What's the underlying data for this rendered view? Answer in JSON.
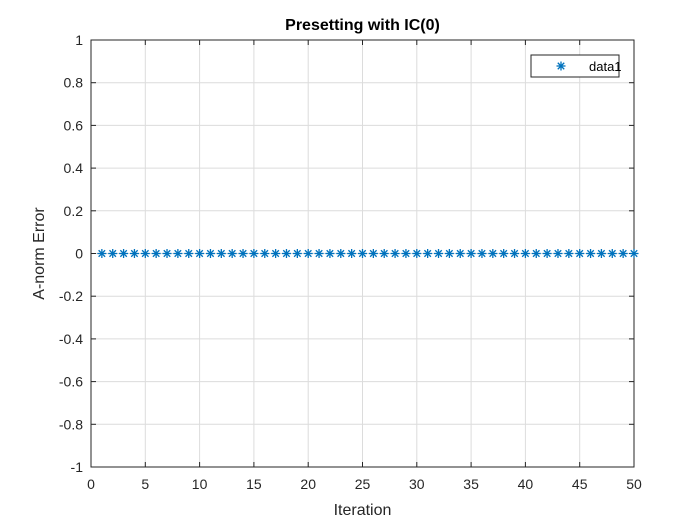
{
  "chart_data": {
    "type": "scatter",
    "title": "Presetting with IC(0)",
    "xlabel": "Iteration",
    "ylabel": "A-norm Error",
    "xlim": [
      0,
      50
    ],
    "ylim": [
      -1,
      1
    ],
    "xticks": [
      0,
      5,
      10,
      15,
      20,
      25,
      30,
      35,
      40,
      45,
      50
    ],
    "yticks": [
      -1,
      -0.8,
      -0.6,
      -0.4,
      -0.2,
      0,
      0.2,
      0.4,
      0.6,
      0.8,
      1
    ],
    "xtick_labels": [
      "0",
      "5",
      "10",
      "15",
      "20",
      "25",
      "30",
      "35",
      "40",
      "45",
      "50"
    ],
    "ytick_labels": [
      "-1",
      "-0.8",
      "-0.6",
      "-0.4",
      "-0.2",
      "0",
      "0.2",
      "0.4",
      "0.6",
      "0.8",
      "1"
    ],
    "grid": true,
    "legend_position": "top-right",
    "marker": "asterisk",
    "series": [
      {
        "name": "data1",
        "color": "#0072BD",
        "x": [
          1,
          2,
          3,
          4,
          5,
          6,
          7,
          8,
          9,
          10,
          11,
          12,
          13,
          14,
          15,
          16,
          17,
          18,
          19,
          20,
          21,
          22,
          23,
          24,
          25,
          26,
          27,
          28,
          29,
          30,
          31,
          32,
          33,
          34,
          35,
          36,
          37,
          38,
          39,
          40,
          41,
          42,
          43,
          44,
          45,
          46,
          47,
          48,
          49,
          50
        ],
        "y": [
          0,
          0,
          0,
          0,
          0,
          0,
          0,
          0,
          0,
          0,
          0,
          0,
          0,
          0,
          0,
          0,
          0,
          0,
          0,
          0,
          0,
          0,
          0,
          0,
          0,
          0,
          0,
          0,
          0,
          0,
          0,
          0,
          0,
          0,
          0,
          0,
          0,
          0,
          0,
          0,
          0,
          0,
          0,
          0,
          0,
          0,
          0,
          0,
          0,
          0
        ]
      }
    ]
  }
}
